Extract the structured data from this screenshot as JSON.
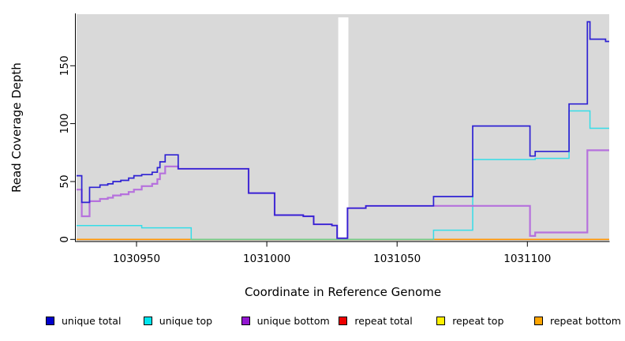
{
  "figure": {
    "background": "#ffffff"
  },
  "chart_data": {
    "type": "line",
    "subtype": "step-coverage-profile",
    "title": "",
    "xlabel": "Coordinate in Reference Genome",
    "ylabel": "Read Coverage Depth",
    "xlim": [
      1030927,
      1031131.4
    ],
    "ylim": [
      0,
      194
    ],
    "x_ticks": [
      1030950,
      1031000,
      1031050,
      1031100
    ],
    "x_tick_labels": [
      "1030950",
      "1031000",
      "1031050",
      "1031100"
    ],
    "y_ticks": [
      0,
      50,
      100,
      150
    ],
    "y_tick_labels": [
      "0",
      "50",
      "100",
      "150"
    ],
    "grid": false,
    "legend_position": "bottom",
    "plot_background": "#d9d9d9",
    "axis_color": "#000000",
    "gap_region": {
      "x1": 1031027.4,
      "x2": 1031031.3,
      "color": "#ffffff"
    },
    "zero_overlap_segment": {
      "x1": 1030971,
      "x2": 1031064,
      "value": 0,
      "color": "#72ca84"
    },
    "series": [
      {
        "name": "unique total",
        "color": "#0000cd",
        "line_color": "#2f22d3",
        "width": 1.7,
        "points": [
          [
            1030927,
            55
          ],
          [
            1030929,
            32
          ],
          [
            1030932,
            45
          ],
          [
            1030936,
            47
          ],
          [
            1030939,
            48
          ],
          [
            1030941,
            50
          ],
          [
            1030944,
            51
          ],
          [
            1030947,
            53
          ],
          [
            1030949,
            55
          ],
          [
            1030952,
            56
          ],
          [
            1030956,
            58
          ],
          [
            1030958,
            62
          ],
          [
            1030959,
            67
          ],
          [
            1030961,
            73
          ],
          [
            1030966,
            61
          ],
          [
            1030993,
            40
          ],
          [
            1031003,
            21
          ],
          [
            1031014,
            20
          ],
          [
            1031018,
            13
          ],
          [
            1031025,
            12
          ],
          [
            1031027,
            1
          ],
          [
            1031031,
            27
          ],
          [
            1031038,
            29
          ],
          [
            1031064,
            37
          ],
          [
            1031079,
            98
          ],
          [
            1031101,
            72
          ],
          [
            1031103,
            76
          ],
          [
            1031116,
            117
          ],
          [
            1031123,
            188
          ],
          [
            1031124,
            173
          ],
          [
            1031130,
            171
          ]
        ]
      },
      {
        "name": "unique top",
        "color": "#00e5ee",
        "line_color": "#35dde8",
        "width": 1.5,
        "points": [
          [
            1030927,
            12
          ],
          [
            1030952,
            10
          ],
          [
            1030971,
            0
          ],
          [
            1031064,
            8
          ],
          [
            1031079,
            69
          ],
          [
            1031103,
            70
          ],
          [
            1031116,
            111
          ],
          [
            1031124,
            96
          ]
        ]
      },
      {
        "name": "unique bottom",
        "color": "#9317d1",
        "line_color": "#b671dd",
        "width": 2.2,
        "points": [
          [
            1030927,
            43
          ],
          [
            1030929,
            20
          ],
          [
            1030932,
            33
          ],
          [
            1030936,
            35
          ],
          [
            1030939,
            36
          ],
          [
            1030941,
            38
          ],
          [
            1030944,
            39
          ],
          [
            1030947,
            41
          ],
          [
            1030949,
            43
          ],
          [
            1030952,
            46
          ],
          [
            1030956,
            48
          ],
          [
            1030958,
            52
          ],
          [
            1030959,
            57
          ],
          [
            1030961,
            63
          ],
          [
            1030966,
            61
          ],
          [
            1030993,
            40
          ],
          [
            1031003,
            21
          ],
          [
            1031014,
            20
          ],
          [
            1031018,
            13
          ],
          [
            1031025,
            12
          ],
          [
            1031027,
            1
          ],
          [
            1031031,
            27
          ],
          [
            1031038,
            29
          ],
          [
            1031101,
            3
          ],
          [
            1031103,
            6
          ],
          [
            1031123,
            77
          ]
        ]
      },
      {
        "name": "repeat total",
        "color": "#ee0000",
        "line_color": "#ee0000",
        "width": 1.5,
        "points": [
          [
            1030927,
            0
          ]
        ]
      },
      {
        "name": "repeat top",
        "color": "#fff000",
        "line_color": "#fff000",
        "width": 1.5,
        "points": [
          [
            1030927,
            0
          ]
        ]
      },
      {
        "name": "repeat bottom",
        "color": "#ffa500",
        "line_color": "#ff9400",
        "width": 1.6,
        "points": [
          [
            1030927,
            0
          ]
        ]
      }
    ]
  },
  "legend": {
    "items": [
      {
        "label": "unique total"
      },
      {
        "label": "unique top"
      },
      {
        "label": "unique bottom"
      },
      {
        "label": "repeat total"
      },
      {
        "label": "repeat top"
      },
      {
        "label": "repeat bottom"
      }
    ]
  }
}
